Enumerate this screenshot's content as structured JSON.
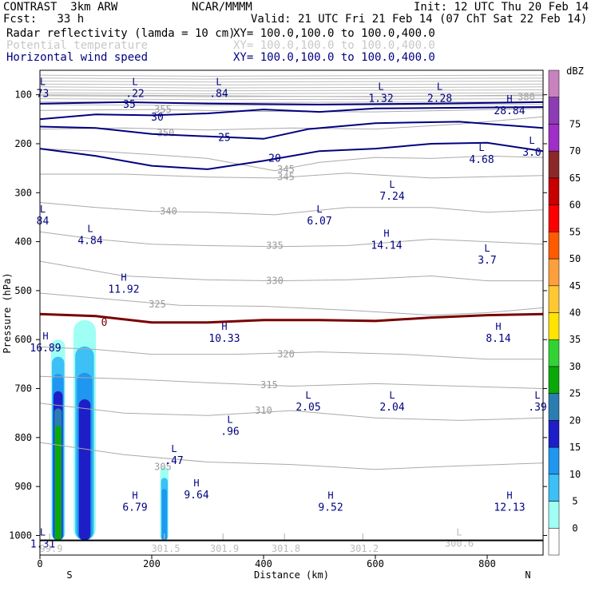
{
  "header": {
    "model": "CONTRAST  3km ARW",
    "org": "NCAR/MMMM",
    "init": "Init: 12 UTC Thu 20 Feb 14",
    "fcst": "Fcst:   33 h",
    "valid": "Valid: 21 UTC Fri 21 Feb 14 (07 ChT Sat 22 Feb 14)",
    "fields": [
      {
        "name": "Radar reflectivity (lamda = 10 cm)",
        "xy": "XY= 100.0,100.0 to 100.0,400.0",
        "color": "#000000"
      },
      {
        "name": "Potential temperature",
        "xy": "XY= 100.0,100.0 to 100.0,400.0",
        "color": "#c8c8c8"
      },
      {
        "name": "Horizontal wind speed",
        "xy": "XY= 100.0,100.0 to 100.0,400.0",
        "color": "#000080"
      }
    ]
  },
  "colorbar": {
    "unit": "dBZ",
    "levels": [
      0,
      5,
      10,
      15,
      20,
      25,
      30,
      35,
      40,
      45,
      50,
      55,
      60,
      65,
      70,
      75
    ],
    "colors": [
      "#ffffff",
      "#9ffff5",
      "#3cc0f5",
      "#1f96f0",
      "#1e1ec8",
      "#2a7db0",
      "#08a908",
      "#33d233",
      "#ffe400",
      "#ffc832",
      "#ff9f3c",
      "#ff5a00",
      "#ff0000",
      "#c80000",
      "#8c2828",
      "#a02ec8",
      "#8c3cb4",
      "#c882be"
    ]
  },
  "chart_data": {
    "type": "cross-section",
    "xlabel": "Distance (km)",
    "ylabel": "Pressure (hPa)",
    "xlim": [
      0,
      900
    ],
    "ylim": [
      1040,
      50
    ],
    "x_ticks": [
      0,
      200,
      400,
      600,
      800
    ],
    "y_ticks": [
      100,
      200,
      300,
      400,
      500,
      600,
      700,
      800,
      900,
      1000
    ],
    "x_ends": {
      "left": "S",
      "right": "N"
    },
    "theta_contours": [
      {
        "value": "380",
        "label_at": [
          870,
          105
        ],
        "points": [
          [
            0,
            100
          ],
          [
            300,
            102
          ],
          [
            600,
            104
          ],
          [
            900,
            100
          ]
        ]
      },
      {
        "value": "355",
        "label_at": [
          220,
          130
        ],
        "points": [
          [
            0,
            132
          ],
          [
            200,
            130
          ],
          [
            400,
            134
          ],
          [
            600,
            135
          ],
          [
            900,
            128
          ]
        ]
      },
      {
        "value": "350",
        "label_at": [
          225,
          178
        ],
        "points": [
          [
            0,
            170
          ],
          [
            150,
            168
          ],
          [
            300,
            172
          ],
          [
            450,
            168
          ],
          [
            600,
            170
          ],
          [
            750,
            160
          ],
          [
            900,
            145
          ]
        ]
      },
      {
        "value": "345",
        "label_at": [
          440,
          252
        ],
        "points": [
          [
            0,
            210
          ],
          [
            100,
            215
          ],
          [
            200,
            222
          ],
          [
            300,
            230
          ],
          [
            420,
            255
          ],
          [
            500,
            238
          ],
          [
            600,
            228
          ],
          [
            700,
            230
          ],
          [
            800,
            225
          ],
          [
            900,
            228
          ]
        ]
      },
      {
        "value": "345",
        "label_at": [
          440,
          268
        ],
        "points": [
          [
            0,
            262
          ],
          [
            150,
            262
          ],
          [
            300,
            268
          ],
          [
            420,
            270
          ],
          [
            550,
            260
          ],
          [
            700,
            270
          ],
          [
            900,
            265
          ]
        ]
      },
      {
        "value": "340",
        "label_at": [
          230,
          338
        ],
        "points": [
          [
            0,
            320
          ],
          [
            100,
            330
          ],
          [
            200,
            338
          ],
          [
            300,
            340
          ],
          [
            420,
            345
          ],
          [
            550,
            330
          ],
          [
            700,
            330
          ],
          [
            800,
            340
          ],
          [
            900,
            335
          ]
        ]
      },
      {
        "value": "335",
        "label_at": [
          420,
          408
        ],
        "points": [
          [
            0,
            380
          ],
          [
            100,
            395
          ],
          [
            200,
            405
          ],
          [
            300,
            408
          ],
          [
            420,
            410
          ],
          [
            550,
            408
          ],
          [
            700,
            395
          ],
          [
            800,
            400
          ],
          [
            900,
            405
          ]
        ]
      },
      {
        "value": "330",
        "label_at": [
          420,
          480
        ],
        "points": [
          [
            0,
            440
          ],
          [
            150,
            470
          ],
          [
            300,
            478
          ],
          [
            420,
            480
          ],
          [
            550,
            478
          ],
          [
            700,
            470
          ],
          [
            800,
            480
          ],
          [
            900,
            480
          ]
        ]
      },
      {
        "value": "325",
        "label_at": [
          210,
          528
        ],
        "points": [
          [
            0,
            505
          ],
          [
            150,
            520
          ],
          [
            250,
            530
          ],
          [
            400,
            532
          ],
          [
            550,
            540
          ],
          [
            700,
            550
          ],
          [
            800,
            545
          ],
          [
            900,
            535
          ]
        ]
      },
      {
        "value": "320",
        "label_at": [
          440,
          630
        ],
        "points": [
          [
            0,
            615
          ],
          [
            100,
            620
          ],
          [
            200,
            630
          ],
          [
            350,
            630
          ],
          [
            500,
            625
          ],
          [
            650,
            630
          ],
          [
            800,
            640
          ],
          [
            900,
            640
          ]
        ]
      },
      {
        "value": "315",
        "label_at": [
          410,
          693
        ],
        "points": [
          [
            0,
            675
          ],
          [
            150,
            680
          ],
          [
            300,
            688
          ],
          [
            450,
            695
          ],
          [
            600,
            690
          ],
          [
            750,
            695
          ],
          [
            900,
            700
          ]
        ]
      },
      {
        "value": "310",
        "label_at": [
          400,
          745
        ],
        "points": [
          [
            0,
            730
          ],
          [
            150,
            750
          ],
          [
            300,
            755
          ],
          [
            450,
            745
          ],
          [
            600,
            760
          ],
          [
            750,
            765
          ],
          [
            900,
            760
          ]
        ]
      },
      {
        "value": "305",
        "label_at": [
          220,
          860
        ],
        "points": [
          [
            0,
            810
          ],
          [
            150,
            835
          ],
          [
            300,
            850
          ],
          [
            450,
            855
          ],
          [
            600,
            865
          ],
          [
            750,
            858
          ],
          [
            900,
            852
          ]
        ]
      }
    ],
    "wind_contours": [
      {
        "value": "35",
        "label_at": [
          160,
          120
        ],
        "points": [
          [
            0,
            118
          ],
          [
            150,
            115
          ],
          [
            300,
            118
          ],
          [
            500,
            120
          ],
          [
            700,
            118
          ],
          [
            900,
            115
          ]
        ]
      },
      {
        "value": "30",
        "label_at": [
          210,
          146
        ],
        "points": [
          [
            0,
            150
          ],
          [
            100,
            140
          ],
          [
            200,
            142
          ],
          [
            300,
            138
          ],
          [
            400,
            130
          ],
          [
            500,
            135
          ],
          [
            600,
            128
          ],
          [
            900,
            125
          ]
        ]
      },
      {
        "value": "25",
        "label_at": [
          330,
          188
        ],
        "points": [
          [
            0,
            165
          ],
          [
            100,
            168
          ],
          [
            200,
            180
          ],
          [
            300,
            185
          ],
          [
            400,
            190
          ],
          [
            480,
            170
          ],
          [
            600,
            158
          ],
          [
            750,
            155
          ],
          [
            900,
            168
          ]
        ]
      },
      {
        "value": "20",
        "label_at": [
          420,
          230
        ],
        "points": [
          [
            0,
            210
          ],
          [
            100,
            225
          ],
          [
            200,
            245
          ],
          [
            300,
            252
          ],
          [
            400,
            235
          ],
          [
            500,
            215
          ],
          [
            600,
            210
          ],
          [
            700,
            200
          ],
          [
            800,
            198
          ],
          [
            900,
            215
          ]
        ]
      },
      {
        "value": "0",
        "label_at": [
          115,
          565
        ],
        "points": [
          [
            0,
            548
          ],
          [
            100,
            552
          ],
          [
            200,
            565
          ],
          [
            300,
            565
          ],
          [
            400,
            560
          ],
          [
            500,
            560
          ],
          [
            600,
            562
          ],
          [
            700,
            555
          ],
          [
            800,
            550
          ],
          [
            900,
            548
          ]
        ]
      }
    ],
    "reflectivity_columns": [
      {
        "x": [
          20,
          45
        ],
        "p_top": 600,
        "p_bottom": 1010,
        "max_dbz": 30
      },
      {
        "x": [
          60,
          100
        ],
        "p_top": 560,
        "p_bottom": 1010,
        "max_dbz": 20
      },
      {
        "x": [
          215,
          230
        ],
        "p_top": 860,
        "p_bottom": 1010,
        "max_dbz": 15
      }
    ],
    "highs_lows": [
      {
        "type": "L",
        "value": "73",
        "x": 5,
        "p": 80
      },
      {
        "type": "L",
        "value": ".22",
        "x": 170,
        "p": 80
      },
      {
        "type": "L",
        "value": ".84",
        "x": 320,
        "p": 80
      },
      {
        "type": "L",
        "value": "1.32",
        "x": 610,
        "p": 90
      },
      {
        "type": "L",
        "value": "2.28",
        "x": 715,
        "p": 90
      },
      {
        "type": "H",
        "value": "28.84",
        "x": 840,
        "p": 115
      },
      {
        "type": "L",
        "value": "4.68",
        "x": 790,
        "p": 215
      },
      {
        "type": "L",
        "value": "3.0",
        "x": 880,
        "p": 200
      },
      {
        "type": "L",
        "value": "7.24",
        "x": 630,
        "p": 290
      },
      {
        "type": "L",
        "value": "84",
        "x": 5,
        "p": 340
      },
      {
        "type": "L",
        "value": "6.07",
        "x": 500,
        "p": 340
      },
      {
        "type": "L",
        "value": "4.84",
        "x": 90,
        "p": 380
      },
      {
        "type": "H",
        "value": "14.14",
        "x": 620,
        "p": 390
      },
      {
        "type": "L",
        "value": "3.7",
        "x": 800,
        "p": 420
      },
      {
        "type": "H",
        "value": "11.92",
        "x": 150,
        "p": 480
      },
      {
        "type": "H",
        "value": "10.33",
        "x": 330,
        "p": 580
      },
      {
        "type": "H",
        "value": "8.14",
        "x": 820,
        "p": 580
      },
      {
        "type": "H",
        "value": "16.89",
        "x": 10,
        "p": 600
      },
      {
        "type": "L",
        "value": "2.05",
        "x": 480,
        "p": 720
      },
      {
        "type": "L",
        "value": "2.04",
        "x": 630,
        "p": 720
      },
      {
        "type": "L",
        "value": ".39",
        "x": 890,
        "p": 720
      },
      {
        "type": "L",
        "value": ".96",
        "x": 340,
        "p": 770
      },
      {
        "type": "L",
        "value": ".47",
        "x": 240,
        "p": 830
      },
      {
        "type": "H",
        "value": "9.64",
        "x": 280,
        "p": 900
      },
      {
        "type": "H",
        "value": "6.79",
        "x": 170,
        "p": 925
      },
      {
        "type": "H",
        "value": "9.52",
        "x": 520,
        "p": 925
      },
      {
        "type": "H",
        "value": "12.13",
        "x": 840,
        "p": 925
      },
      {
        "type": "L",
        "value": "1.31",
        "x": 5,
        "p": 1000
      }
    ],
    "surface_lows": [
      {
        "value": "99.9",
        "x": 20,
        "p": 1030
      },
      {
        "value": "301.5",
        "x": 225,
        "p": 1030
      },
      {
        "value": "301.9",
        "x": 330,
        "p": 1030
      },
      {
        "value": "301.8",
        "x": 440,
        "p": 1030
      },
      {
        "value": "301.2",
        "x": 580,
        "p": 1030
      },
      {
        "value": "300.6",
        "x": 750,
        "p": 1020
      }
    ]
  }
}
